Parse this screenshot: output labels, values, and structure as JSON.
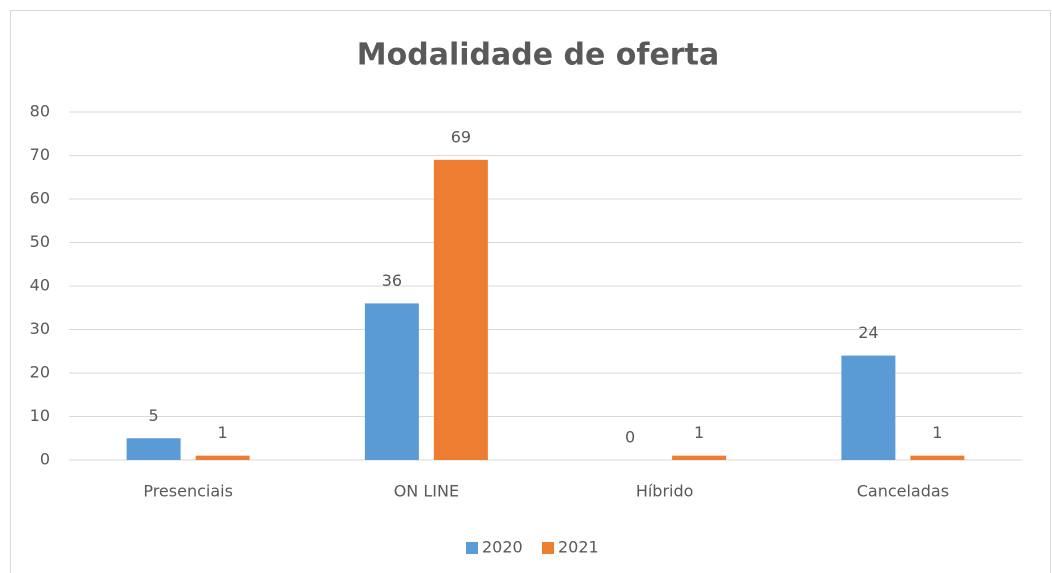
{
  "chart_data": {
    "type": "bar",
    "title": "Modalidade de oferta",
    "categories": [
      "Presenciais",
      "ON LINE",
      "Híbrido",
      "Canceladas"
    ],
    "series": [
      {
        "name": "2020",
        "color": "#5b9bd5",
        "values": [
          5,
          36,
          0,
          24
        ]
      },
      {
        "name": "2021",
        "color": "#ed7d31",
        "values": [
          1,
          69,
          1,
          1
        ]
      }
    ],
    "ylim": [
      0,
      80
    ],
    "yticks": [
      0,
      10,
      20,
      30,
      40,
      50,
      60,
      70,
      80
    ],
    "grid": true,
    "legend": "bottom"
  }
}
